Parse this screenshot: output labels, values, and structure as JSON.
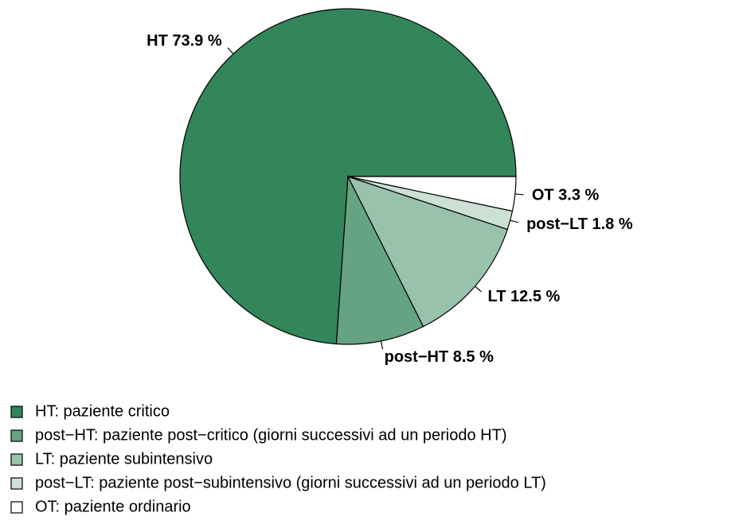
{
  "chart_data": {
    "type": "pie",
    "categories": [
      "HT: paziente critico",
      "post−HT: paziente post−critico (giorni successivi ad un periodo HT)",
      "LT: paziente subintensivo",
      "post−LT: paziente post−subintensivo (giorni successivi ad un periodo LT)",
      "OT: paziente ordinario"
    ],
    "values": [
      73.9,
      8.5,
      12.5,
      1.8,
      3.3
    ],
    "value_labels": [
      "HT 73.9 %",
      "post−HT 8.5 %",
      "LT 12.5 %",
      "post−LT 1.8 %",
      "OT 3.3 %"
    ],
    "colors": [
      "#33855a",
      "#66a383",
      "#99c2ad",
      "#cce0d6",
      "#ffffff"
    ]
  }
}
